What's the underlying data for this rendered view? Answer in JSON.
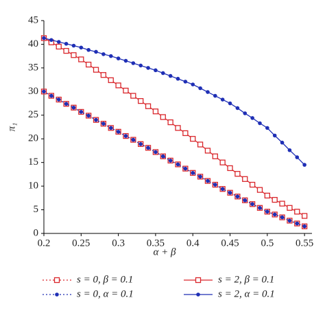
{
  "chart_data": {
    "type": "line",
    "x_label": "α + β",
    "y_label": "π₁",
    "x": [
      0.2,
      0.21,
      0.22,
      0.23,
      0.24,
      0.25,
      0.26,
      0.27,
      0.28,
      0.29,
      0.3,
      0.31,
      0.32,
      0.33,
      0.34,
      0.35,
      0.36,
      0.37,
      0.38,
      0.39,
      0.4,
      0.41,
      0.42,
      0.43,
      0.44,
      0.45,
      0.46,
      0.47,
      0.48,
      0.49,
      0.5,
      0.51,
      0.52,
      0.53,
      0.54,
      0.55
    ],
    "series": [
      {
        "name": "s = 0, β = 0.1",
        "color": "#d9262b",
        "dash": "dotted",
        "marker": "square",
        "values": [
          30,
          29.1,
          28.3,
          27.4,
          26.6,
          25.7,
          24.9,
          24.0,
          23.2,
          22.3,
          21.5,
          20.6,
          19.8,
          18.9,
          18.1,
          17.2,
          16.3,
          15.4,
          14.6,
          13.7,
          12.8,
          12.0,
          11.1,
          10.3,
          9.4,
          8.6,
          7.8,
          7.0,
          6.2,
          5.4,
          4.6,
          4.0,
          3.4,
          2.7,
          2.1,
          1.5
        ]
      },
      {
        "name": "s = 2, β = 0.1",
        "color": "#d9262b",
        "dash": "solid",
        "marker": "square",
        "values": [
          41.3,
          40.4,
          39.5,
          38.6,
          37.7,
          36.8,
          35.7,
          34.6,
          33.5,
          32.4,
          31.3,
          30.2,
          29.1,
          28.0,
          26.9,
          25.8,
          24.6,
          23.5,
          22.3,
          21.2,
          20.0,
          18.8,
          17.5,
          16.3,
          15.0,
          13.8,
          12.6,
          11.5,
          10.3,
          9.2,
          8.0,
          7.1,
          6.3,
          5.4,
          4.6,
          3.7
        ]
      },
      {
        "name": "s = 0, α = 0.1",
        "color": "#1f2fb5",
        "dash": "dotted",
        "marker": "circle",
        "values": [
          30,
          29.1,
          28.3,
          27.4,
          26.6,
          25.7,
          24.9,
          24.0,
          23.2,
          22.3,
          21.5,
          20.6,
          19.8,
          18.9,
          18.1,
          17.2,
          16.3,
          15.4,
          14.6,
          13.7,
          12.8,
          12.0,
          11.1,
          10.3,
          9.4,
          8.6,
          7.8,
          7.0,
          6.2,
          5.4,
          4.6,
          4.0,
          3.4,
          2.7,
          2.1,
          1.5
        ]
      },
      {
        "name": "s = 2, α = 0.1",
        "color": "#1f2fb5",
        "dash": "solid",
        "marker": "circle",
        "values": [
          41.3,
          40.9,
          40.5,
          40.1,
          39.7,
          39.3,
          38.8,
          38.4,
          37.9,
          37.5,
          37.0,
          36.5,
          36.0,
          35.5,
          35.0,
          34.5,
          33.9,
          33.3,
          32.7,
          32.1,
          31.5,
          30.7,
          29.9,
          29.1,
          28.3,
          27.5,
          26.5,
          25.4,
          24.4,
          23.3,
          22.3,
          20.7,
          19.2,
          17.6,
          16.1,
          14.5
        ]
      }
    ],
    "xlim": [
      0.2,
      0.56
    ],
    "xticks": [
      0.2,
      0.25,
      0.3,
      0.35,
      0.4,
      0.45,
      0.5,
      0.55
    ],
    "ylim": [
      0,
      45
    ],
    "yticks": [
      0,
      5,
      10,
      15,
      20,
      25,
      30,
      35,
      40,
      45
    ],
    "grid": false,
    "legend": "bottom"
  }
}
